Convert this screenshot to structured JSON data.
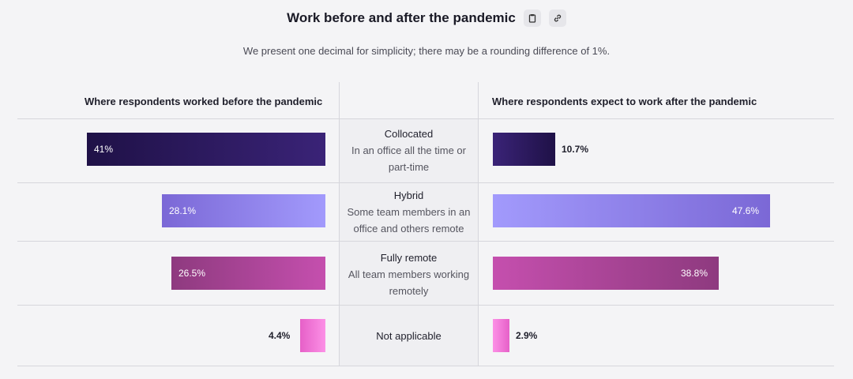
{
  "header": {
    "title": "Work before and after the pandemic",
    "subtitle": "We present one decimal for simplicity; there may be a rounding difference of 1%.",
    "copy_icon": "clipboard-icon",
    "link_icon": "link-icon"
  },
  "columns": {
    "before": "Where respondents worked before the pandemic",
    "after": "Where respondents expect to work after the pandemic"
  },
  "chart_data": {
    "type": "bar",
    "title": "Work before and after the pandemic",
    "orientation": "horizontal-butterfly",
    "max_value": 50,
    "categories": [
      {
        "name": "Collocated",
        "description": "In an office all the time or part-time"
      },
      {
        "name": "Hybrid",
        "description": "Some team members in an office and others remote"
      },
      {
        "name": "Fully remote",
        "description": "All team members working remotely"
      },
      {
        "name": "Not applicable",
        "description": ""
      }
    ],
    "series": [
      {
        "name": "Where respondents worked before the pandemic",
        "values": [
          41,
          28.1,
          26.5,
          4.4
        ],
        "labels": [
          "41%",
          "28.1%",
          "26.5%",
          "4.4%"
        ]
      },
      {
        "name": "Where respondents expect to work after the pandemic",
        "values": [
          10.7,
          47.6,
          38.8,
          2.9
        ],
        "labels": [
          "10.7%",
          "47.6%",
          "38.8%",
          "2.9%"
        ]
      }
    ],
    "colors": [
      [
        "#3a2377",
        "#1f1147"
      ],
      [
        "#a29afc",
        "#7b68d6"
      ],
      [
        "#c54fae",
        "#8e3a7f"
      ],
      [
        "#fc90e6",
        "#e660c8"
      ]
    ]
  }
}
